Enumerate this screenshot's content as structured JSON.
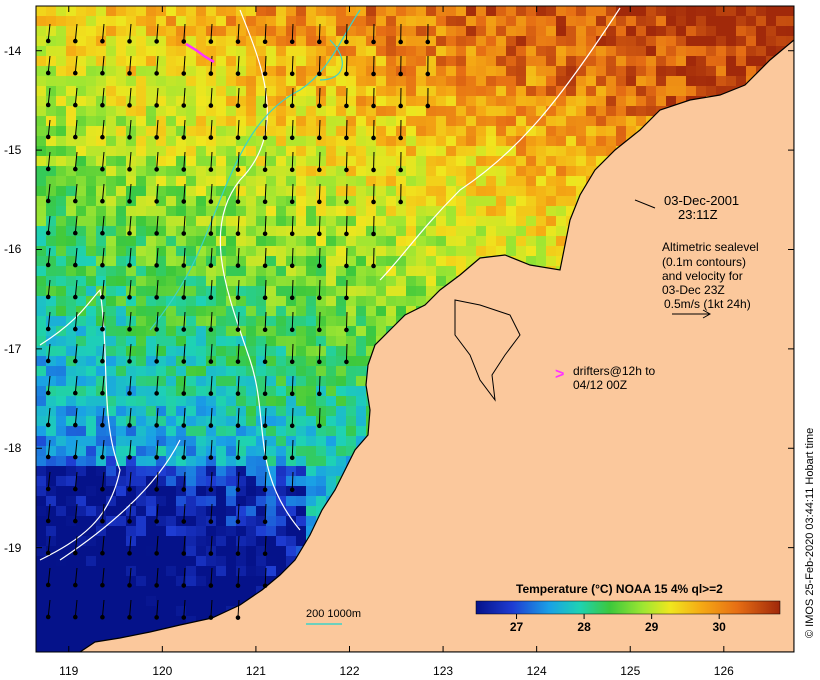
{
  "map": {
    "lon_ticks": [
      "119",
      "120",
      "121",
      "122",
      "123",
      "124",
      "125",
      "126"
    ],
    "lat_ticks": [
      "-14",
      "-15",
      "-16",
      "-17",
      "-18",
      "-19"
    ],
    "lon_range": [
      118.65,
      126.75
    ],
    "lat_range": [
      -20.05,
      -13.55
    ]
  },
  "annotations": {
    "date": "03-Dec-2001",
    "time": "23:11Z",
    "altimetry_line1": "Altimetric sealevel",
    "altimetry_line2": "(0.1m contours)",
    "altimetry_line3": "and velocity for",
    "altimetry_line4": "03-Dec 23Z",
    "altimetry_line5": "0.5m/s (1kt 24h)",
    "drifters_marker": ">",
    "drifters_line1": "drifters@12h to",
    "drifters_line2": "04/12 00Z",
    "depth_label": "200  1000m",
    "credit": "© IMOS 25-Feb-2020 03:44:11 Hobart time"
  },
  "colorbar": {
    "title": "Temperature (°C) NOAA 15 4% ql>=2",
    "ticks": [
      "27",
      "28",
      "29",
      "30"
    ],
    "range": [
      26.4,
      30.9
    ]
  },
  "colors": {
    "land": "#fbc89c",
    "sst_cold": "#0a1a8c",
    "sst_warm": "#d2691e",
    "contour": "#ffffff",
    "drifter": "#ff33ff"
  }
}
